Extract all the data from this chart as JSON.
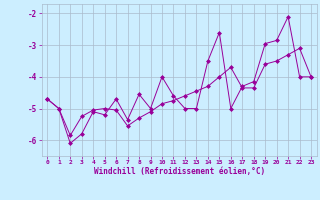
{
  "xlabel": "Windchill (Refroidissement éolien,°C)",
  "background_color": "#cceeff",
  "line_color": "#990099",
  "grid_color": "#aabbcc",
  "x_data": [
    0,
    1,
    2,
    3,
    4,
    5,
    6,
    7,
    8,
    9,
    10,
    11,
    12,
    13,
    14,
    15,
    16,
    17,
    18,
    19,
    20,
    21,
    22,
    23
  ],
  "y_zigzag": [
    -4.7,
    -5.0,
    -6.1,
    -5.8,
    -5.1,
    -5.2,
    -4.7,
    -5.35,
    -4.55,
    -5.0,
    -4.0,
    -4.6,
    -5.0,
    -5.0,
    -3.5,
    -2.6,
    -5.0,
    -4.3,
    -4.15,
    -2.95,
    -2.85,
    -2.1,
    -4.0,
    -4.0
  ],
  "y_smooth": [
    -4.7,
    -5.0,
    -5.85,
    -5.25,
    -5.05,
    -5.0,
    -5.05,
    -5.55,
    -5.3,
    -5.1,
    -4.85,
    -4.75,
    -4.6,
    -4.45,
    -4.3,
    -4.0,
    -3.7,
    -4.35,
    -4.35,
    -3.6,
    -3.5,
    -3.3,
    -3.1,
    -4.0
  ],
  "xlim": [
    -0.5,
    23.5
  ],
  "ylim": [
    -6.5,
    -1.7
  ],
  "yticks": [
    -6,
    -5,
    -4,
    -3,
    -2
  ],
  "xticks": [
    0,
    1,
    2,
    3,
    4,
    5,
    6,
    7,
    8,
    9,
    10,
    11,
    12,
    13,
    14,
    15,
    16,
    17,
    18,
    19,
    20,
    21,
    22,
    23
  ]
}
